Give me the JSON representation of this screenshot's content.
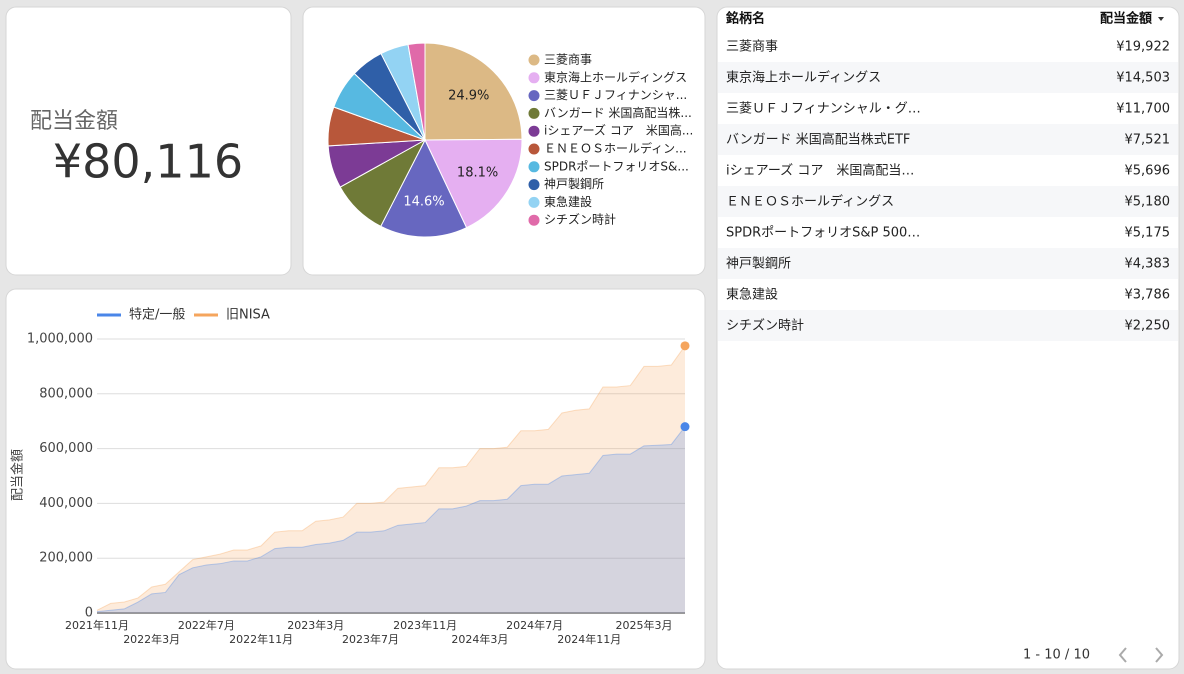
{
  "scorecard": {
    "label": "配当金額",
    "value": "¥80,116"
  },
  "chart_data": [
    {
      "type": "pie",
      "categories": [
        "三菱商事",
        "東京海上ホールディングス",
        "三菱ＵＦＪフィナンシャ...",
        "バンガード 米国高配当株...",
        "iシェアーズ コア　米国高...",
        "ＥＮＥＯＳホールディン...",
        "SPDRポートフォリオS&...",
        "神戸製鋼所",
        "東急建設",
        "シチズン時計"
      ],
      "values": [
        24.9,
        18.1,
        14.6,
        9.4,
        7.1,
        6.5,
        6.5,
        5.5,
        4.7,
        2.8
      ],
      "value_labels": [
        "24.9%",
        "18.1%",
        "14.6%",
        null,
        null,
        null,
        null,
        null,
        null,
        null
      ],
      "colors": [
        "#dcb985",
        "#e5aff1",
        "#6767c0",
        "#6f7a37",
        "#7c3b95",
        "#b8573a",
        "#57b9e1",
        "#2f5fa8",
        "#93d3f3",
        "#e06aa9"
      ],
      "legend": "right"
    },
    {
      "type": "area",
      "categories": [
        "2021年11月",
        null,
        null,
        null,
        "2022年3月",
        null,
        null,
        null,
        "2022年7月",
        null,
        null,
        null,
        "2022年11月",
        null,
        null,
        null,
        "2023年3月",
        null,
        null,
        null,
        "2023年7月",
        null,
        null,
        null,
        "2023年11月",
        null,
        null,
        null,
        "2024年3月",
        null,
        null,
        null,
        "2024年7月",
        null,
        null,
        null,
        "2024年11月",
        null,
        null,
        null,
        "2025年3月",
        null,
        null,
        null
      ],
      "series": [
        {
          "name": "特定/一般",
          "color": "#4a86e8",
          "values": [
            5000,
            10000,
            15000,
            40000,
            70000,
            75000,
            140000,
            165000,
            175000,
            180000,
            190000,
            190000,
            205000,
            235000,
            240000,
            240000,
            250000,
            255000,
            265000,
            295000,
            295000,
            300000,
            320000,
            325000,
            330000,
            380000,
            380000,
            390000,
            410000,
            410000,
            415000,
            465000,
            470000,
            470000,
            500000,
            505000,
            510000,
            575000,
            580000,
            580000,
            610000,
            612000,
            615000,
            680000
          ]
        },
        {
          "name": "旧NISA",
          "color": "#f5a55d",
          "values": [
            10000,
            35000,
            40000,
            55000,
            95000,
            105000,
            150000,
            195000,
            205000,
            215000,
            230000,
            230000,
            245000,
            295000,
            300000,
            300000,
            335000,
            340000,
            350000,
            400000,
            400000,
            405000,
            455000,
            460000,
            465000,
            530000,
            530000,
            535000,
            600000,
            600000,
            605000,
            665000,
            665000,
            670000,
            730000,
            740000,
            745000,
            825000,
            825000,
            830000,
            900000,
            900000,
            905000,
            975000
          ]
        }
      ],
      "ylabel": "配当金額",
      "ylim": [
        0,
        1050000
      ],
      "yticks": [
        0,
        {
          "value": 200000,
          "label": "200,000"
        },
        {
          "value": 400000,
          "label": "400,000"
        },
        {
          "value": 600000,
          "label": "600,000"
        },
        {
          "value": 800000,
          "label": "800,000"
        },
        {
          "value": 1000000,
          "label": "1,000,000"
        }
      ],
      "grid": true,
      "legend": "top"
    }
  ],
  "table": {
    "columns": [
      "銘柄名",
      "配当金額"
    ],
    "rows": [
      [
        "三菱商事",
        "¥19,922"
      ],
      [
        "東京海上ホールディングス",
        "¥14,503"
      ],
      [
        "三菱ＵＦＪフィナンシャル・グ…",
        "¥11,700"
      ],
      [
        "バンガード 米国高配当株式ETF",
        "¥7,521"
      ],
      [
        "iシェアーズ コア　米国高配当…",
        "¥5,696"
      ],
      [
        "ＥＮＥＯＳホールディングス",
        "¥5,180"
      ],
      [
        "SPDRポートフォリオS&P 500…",
        "¥5,175"
      ],
      [
        "神戸製鋼所",
        "¥4,383"
      ],
      [
        "東急建設",
        "¥3,786"
      ],
      [
        "シチズン時計",
        "¥2,250"
      ]
    ],
    "pagination": "1 - 10 / 10"
  }
}
